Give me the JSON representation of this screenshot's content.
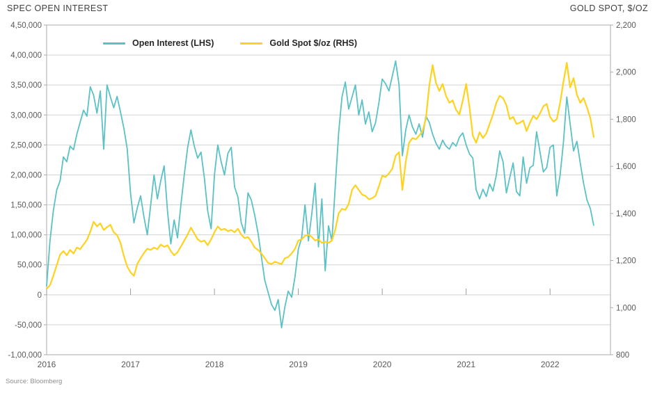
{
  "header": {
    "left_title": "SPEC OPEN INTEREST",
    "right_title": "GOLD SPOT, $/OZ"
  },
  "legend": {
    "items": [
      {
        "id": "open-interest",
        "label": "Open Interest (LHS)",
        "color": "#5AC1C5"
      },
      {
        "id": "gold-spot",
        "label": "Gold Spot $/oz (RHS)",
        "color": "#FFD21E"
      }
    ]
  },
  "source": "Source: Bloomberg",
  "colors": {
    "open_interest_line": "#5AC1C5",
    "gold_spot_line": "#FFD21E",
    "gridline": "#d2d2d2",
    "plot_border": "#ababab",
    "axis_text": "#595959"
  },
  "chart_data": {
    "type": "line",
    "title": "",
    "xlabel": "",
    "grid": "horizontal",
    "legend_position": "top-left-inside",
    "x_axis": {
      "ticks": [
        2016,
        2017,
        2018,
        2019,
        2020,
        2021,
        2022
      ],
      "lim": [
        2016,
        2022.72
      ]
    },
    "y_left": {
      "title": "SPEC OPEN INTEREST",
      "lim": [
        -100000,
        450000
      ],
      "tick_step": 50000,
      "tick_labels": [
        "4,50,000",
        "4,00,000",
        "3,50,000",
        "3,00,000",
        "2,50,000",
        "2,00,000",
        "1,50,000",
        "1,00,000",
        "50,000",
        "0",
        "-50,000",
        "-1,00,000"
      ]
    },
    "y_right": {
      "title": "GOLD SPOT, $/OZ",
      "lim": [
        800,
        2200
      ],
      "tick_step": 200,
      "tick_labels": [
        "2,200",
        "2,000",
        "1,800",
        "1,600",
        "1,400",
        "1,200",
        "1,000",
        "800"
      ]
    },
    "sampling": {
      "x_start": 2016.0,
      "x_step": 0.04,
      "note": "values sampled at ~2-week intervals, x in decimal years"
    },
    "series": [
      {
        "id": "open-interest-line",
        "name": "Open Interest (LHS)",
        "axis": "left",
        "color": "#5AC1C5",
        "stroke_width": 1.8,
        "values": [
          15000,
          90000,
          140000,
          175000,
          190000,
          230000,
          222000,
          248000,
          242000,
          268000,
          288000,
          308000,
          298000,
          347000,
          333000,
          303000,
          340000,
          243000,
          350000,
          330000,
          312000,
          331000,
          305000,
          278000,
          244000,
          170000,
          120000,
          145000,
          165000,
          130000,
          100000,
          150000,
          200000,
          160000,
          190000,
          215000,
          140000,
          85000,
          125000,
          95000,
          150000,
          200000,
          245000,
          275000,
          248000,
          228000,
          238000,
          195000,
          140000,
          110000,
          200000,
          250000,
          222000,
          200000,
          236000,
          246000,
          180000,
          163000,
          120000,
          103000,
          170000,
          158000,
          133000,
          103000,
          63000,
          24000,
          4000,
          -16000,
          -26000,
          -8000,
          -55000,
          -20000,
          6000,
          -4000,
          30000,
          76000,
          95000,
          150000,
          90000,
          135000,
          186000,
          80000,
          160000,
          40000,
          115000,
          90000,
          180000,
          270000,
          330000,
          355000,
          310000,
          330000,
          350000,
          300000,
          325000,
          285000,
          305000,
          272000,
          287000,
          320000,
          360000,
          352000,
          340000,
          365000,
          390000,
          350000,
          232000,
          275000,
          300000,
          280000,
          268000,
          285000,
          263000,
          298000,
          288000,
          268000,
          253000,
          243000,
          258000,
          248000,
          243000,
          254000,
          248000,
          263000,
          270000,
          250000,
          235000,
          228000,
          175000,
          160000,
          176000,
          164000,
          185000,
          173000,
          200000,
          240000,
          222000,
          170000,
          196000,
          220000,
          172000,
          165000,
          230000,
          186000,
          212000,
          216000,
          272000,
          238000,
          205000,
          212000,
          246000,
          250000,
          165000,
          200000,
          255000,
          330000,
          285000,
          240000,
          256000,
          220000,
          186000,
          158000,
          144000,
          116000
        ]
      },
      {
        "id": "gold-spot-line",
        "name": "Gold Spot $/oz (RHS)",
        "axis": "right",
        "color": "#FFD21E",
        "stroke_width": 2.2,
        "values": [
          1080,
          1095,
          1135,
          1180,
          1225,
          1240,
          1222,
          1245,
          1230,
          1255,
          1248,
          1268,
          1288,
          1322,
          1365,
          1345,
          1358,
          1330,
          1342,
          1352,
          1320,
          1308,
          1275,
          1220,
          1175,
          1150,
          1135,
          1185,
          1210,
          1232,
          1250,
          1245,
          1255,
          1248,
          1268,
          1258,
          1265,
          1240,
          1222,
          1235,
          1260,
          1285,
          1310,
          1340,
          1315,
          1290,
          1280,
          1285,
          1265,
          1290,
          1320,
          1345,
          1330,
          1335,
          1325,
          1330,
          1320,
          1335,
          1310,
          1295,
          1300,
          1280,
          1255,
          1245,
          1230,
          1210,
          1190,
          1185,
          1195,
          1190,
          1185,
          1210,
          1215,
          1230,
          1250,
          1285,
          1290,
          1305,
          1310,
          1300,
          1285,
          1290,
          1275,
          1280,
          1275,
          1285,
          1330,
          1400,
          1420,
          1415,
          1440,
          1500,
          1520,
          1500,
          1480,
          1475,
          1460,
          1465,
          1475,
          1515,
          1560,
          1555,
          1570,
          1590,
          1645,
          1660,
          1500,
          1620,
          1700,
          1720,
          1715,
          1730,
          1750,
          1800,
          1940,
          2030,
          1955,
          1920,
          1950,
          1900,
          1870,
          1880,
          1840,
          1820,
          1880,
          1950,
          1850,
          1730,
          1700,
          1745,
          1720,
          1740,
          1780,
          1820,
          1870,
          1900,
          1890,
          1860,
          1800,
          1810,
          1780,
          1785,
          1795,
          1750,
          1785,
          1815,
          1800,
          1825,
          1855,
          1865,
          1810,
          1790,
          1800,
          1870,
          1960,
          2040,
          1935,
          1975,
          1905,
          1870,
          1890,
          1850,
          1805,
          1725
        ]
      }
    ]
  }
}
